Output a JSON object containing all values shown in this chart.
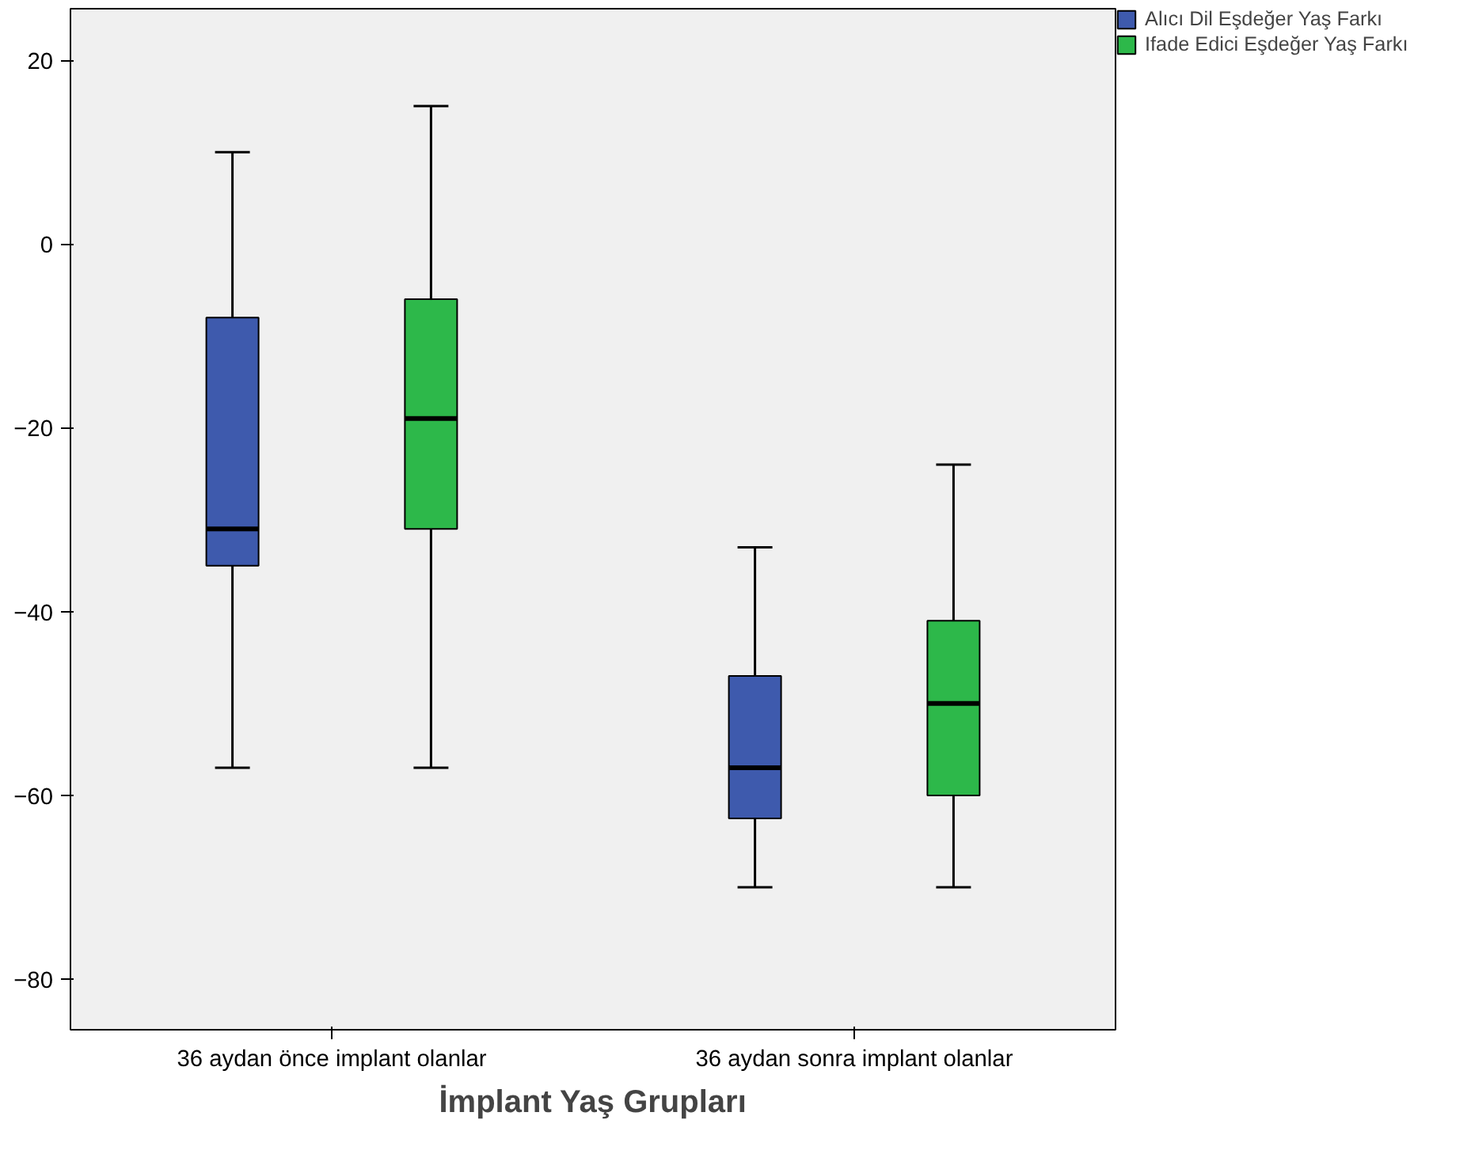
{
  "chart_data": {
    "type": "box",
    "xlabel": "İmplant Yaş Grupları",
    "categories": [
      "36 aydan önce implant olanlar",
      "36 aydan sonra implant olanlar"
    ],
    "series": [
      {
        "name": "Alıcı Dil Eşdeğer Yaş Farkı",
        "color": "#3e5aad",
        "boxes": [
          {
            "low": -57,
            "q1": -35,
            "median": -31,
            "q3": -8,
            "high": 10
          },
          {
            "low": -70,
            "q1": -62.5,
            "median": -57,
            "q3": -47,
            "high": -33
          }
        ]
      },
      {
        "name": "Ifade Edici Eşdeğer Yaş Farkı",
        "color": "#2db84a",
        "boxes": [
          {
            "low": -57,
            "q1": -31,
            "median": -19,
            "q3": -6,
            "high": 15
          },
          {
            "low": -70,
            "q1": -60,
            "median": -50,
            "q3": -41,
            "high": -24
          }
        ]
      }
    ],
    "ylim": [
      -85.5,
      25.6
    ],
    "yticks": [
      -80,
      -60,
      -40,
      -20,
      0,
      20
    ],
    "grid": false,
    "legend": "right"
  }
}
